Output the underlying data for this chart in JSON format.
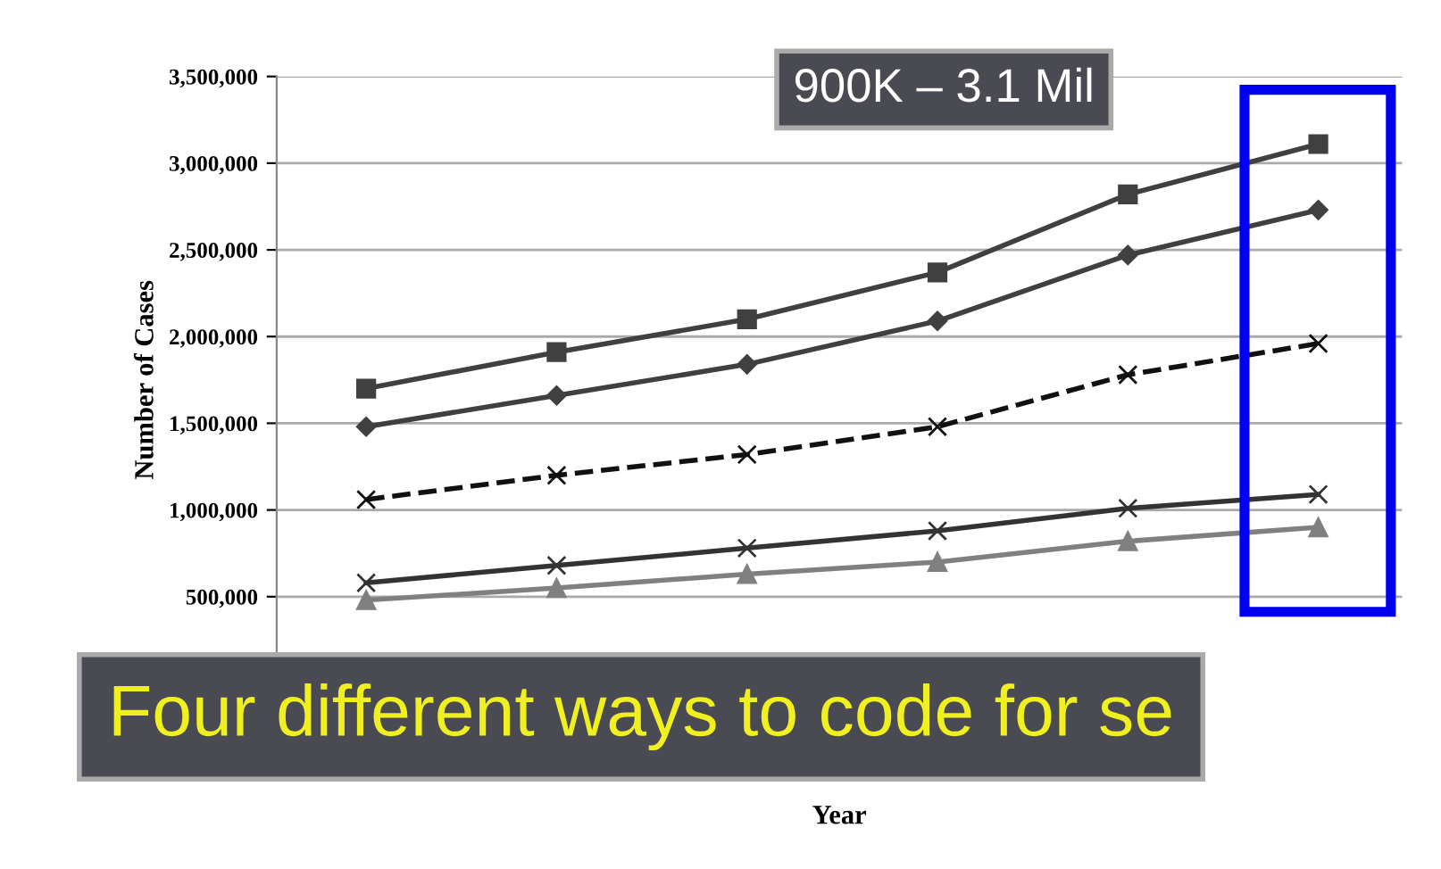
{
  "chart_data": {
    "type": "line",
    "xlabel": "Year",
    "ylabel": "Number of Cases",
    "categories": [
      null,
      null,
      null,
      null,
      null,
      null
    ],
    "series": [
      {
        "color": "#404040",
        "marker": "square",
        "line_style": "solid",
        "values": [
          1700000,
          1910000,
          2100000,
          2370000,
          2820000,
          3110000
        ]
      },
      {
        "color": "#404040",
        "marker": "diamond",
        "line_style": "solid",
        "values": [
          1480000,
          1660000,
          1840000,
          2090000,
          2470000,
          2730000
        ]
      },
      {
        "color": "#111111",
        "marker": "cross",
        "line_style": "dashed",
        "values": [
          1060000,
          1200000,
          1320000,
          1480000,
          1780000,
          1960000
        ]
      },
      {
        "color": "#333333",
        "marker": "cross",
        "line_style": "solid",
        "values": [
          580000,
          680000,
          780000,
          880000,
          1010000,
          1090000
        ]
      },
      {
        "color": "#808080",
        "marker": "triangle",
        "line_style": "solid",
        "values": [
          480000,
          550000,
          630000,
          700000,
          820000,
          900000
        ]
      }
    ],
    "ylim": [
      0,
      3500000
    ],
    "yticks": [
      {
        "value": 500000,
        "label": "500,000"
      },
      {
        "value": 1000000,
        "label": "1,000,000"
      },
      {
        "value": 1500000,
        "label": "1,500,000"
      },
      {
        "value": 2000000,
        "label": "2,000,000"
      },
      {
        "value": 2500000,
        "label": "2,500,000"
      },
      {
        "value": 3000000,
        "label": "3,000,000"
      },
      {
        "value": 3500000,
        "label": "3,500,000"
      }
    ],
    "grid": "y",
    "legend": false,
    "annotations": [
      "900K – 3.1 Mil",
      "Four different ways to code for se"
    ]
  }
}
